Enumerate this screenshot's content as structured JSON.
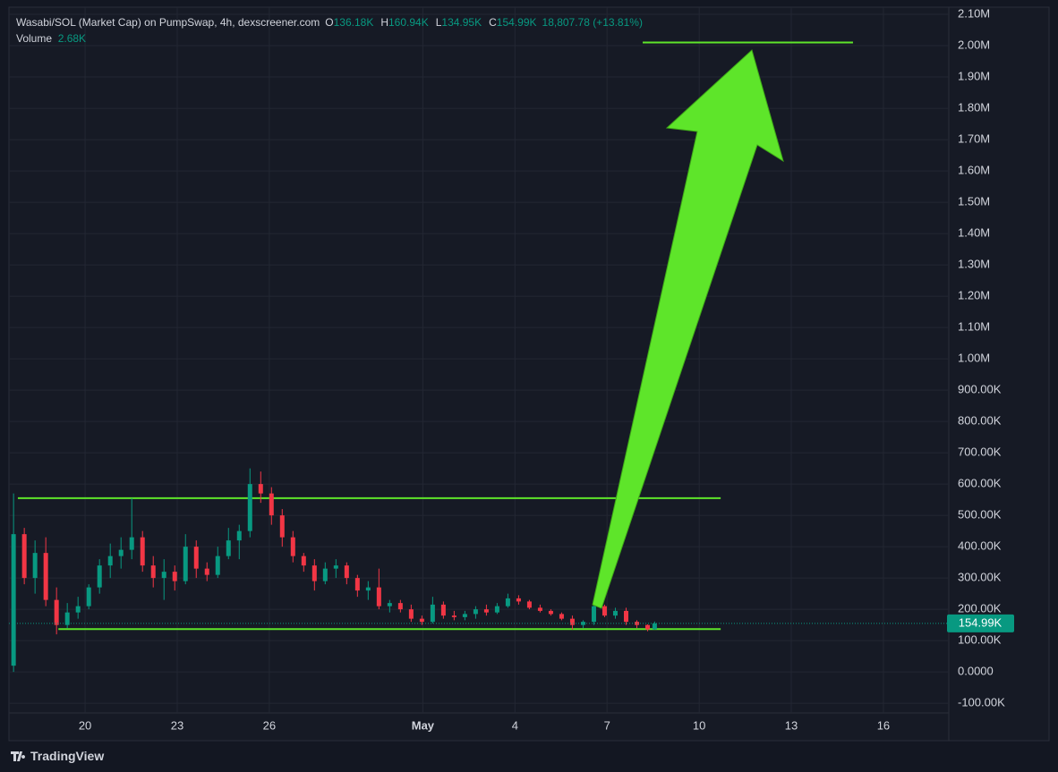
{
  "chart_data": {
    "type": "candlestick",
    "title": "Wasabi/SOL (Market Cap) on PumpSwap, 4h, dexscreener.com",
    "ohlc_legend": [
      {
        "key": "O",
        "value": "136.18K"
      },
      {
        "key": "H",
        "value": "160.94K"
      },
      {
        "key": "L",
        "value": "134.95K"
      },
      {
        "key": "C",
        "value": "154.99K"
      }
    ],
    "change": "18,807.78 (+13.81%)",
    "volume_label": "Volume",
    "volume": "2.68K",
    "up_color": "#089981",
    "down_color": "#f23645",
    "grid": true,
    "xlim": [
      17.52,
      48.13
    ],
    "xticks": [
      20,
      23,
      26,
      {
        "value": 31,
        "label": "May"
      },
      {
        "value": 34,
        "label": "4"
      },
      {
        "value": 37,
        "label": "7"
      },
      {
        "value": 40,
        "label": "10"
      },
      {
        "value": 43,
        "label": "13"
      },
      {
        "value": 46,
        "label": "16"
      }
    ],
    "ylim": [
      -131000,
      2123000
    ],
    "yticks": [
      {
        "value": 2100000,
        "label": "2.10M"
      },
      {
        "value": 2000000,
        "label": "2.00M"
      },
      {
        "value": 1900000,
        "label": "1.90M"
      },
      {
        "value": 1800000,
        "label": "1.80M"
      },
      {
        "value": 1700000,
        "label": "1.70M"
      },
      {
        "value": 1600000,
        "label": "1.60M"
      },
      {
        "value": 1500000,
        "label": "1.50M"
      },
      {
        "value": 1400000,
        "label": "1.40M"
      },
      {
        "value": 1300000,
        "label": "1.30M"
      },
      {
        "value": 1200000,
        "label": "1.20M"
      },
      {
        "value": 1100000,
        "label": "1.10M"
      },
      {
        "value": 1000000,
        "label": "1.00M"
      },
      {
        "value": 900000,
        "label": "900.00K"
      },
      {
        "value": 800000,
        "label": "800.00K"
      },
      {
        "value": 700000,
        "label": "700.00K"
      },
      {
        "value": 600000,
        "label": "600.00K"
      },
      {
        "value": 500000,
        "label": "500.00K"
      },
      {
        "value": 400000,
        "label": "400.00K"
      },
      {
        "value": 300000,
        "label": "300.00K"
      },
      {
        "value": 200000,
        "label": "200.00K"
      },
      {
        "value": 100000,
        "label": "100.00K"
      },
      {
        "value": 0,
        "label": "0.0000"
      },
      {
        "value": -100000,
        "label": "-100.00K"
      }
    ],
    "x": [
      17.67,
      18.02,
      18.37,
      18.72,
      19.07,
      19.42,
      19.77,
      20.12,
      20.47,
      20.82,
      21.17,
      21.52,
      21.87,
      22.22,
      22.57,
      22.92,
      23.27,
      23.62,
      23.97,
      24.32,
      24.67,
      25.02,
      25.37,
      25.72,
      26.07,
      26.42,
      26.77,
      27.12,
      27.47,
      27.82,
      28.17,
      28.52,
      28.87,
      29.22,
      29.57,
      29.92,
      30.27,
      30.62,
      30.97,
      31.32,
      31.67,
      32.02,
      32.37,
      32.72,
      33.07,
      33.42,
      33.77,
      34.12,
      34.47,
      34.82,
      35.17,
      35.52,
      35.87,
      36.22,
      36.57,
      36.92,
      37.27,
      37.62,
      37.97,
      38.32,
      38.55
    ],
    "open": [
      20000,
      440000,
      300000,
      380000,
      230000,
      150000,
      190000,
      210000,
      270000,
      340000,
      370000,
      390000,
      430000,
      340000,
      300000,
      320000,
      290000,
      400000,
      330000,
      310000,
      370000,
      420000,
      450000,
      600000,
      570000,
      500000,
      430000,
      370000,
      340000,
      290000,
      330000,
      340000,
      300000,
      260000,
      270000,
      210000,
      220000,
      200000,
      170000,
      160000,
      215000,
      180000,
      175000,
      185000,
      200000,
      190000,
      210000,
      235000,
      225000,
      205000,
      195000,
      185000,
      170000,
      150000,
      160000,
      210000,
      180000,
      195000,
      160000,
      150000,
      136180
    ],
    "high": [
      570000,
      460000,
      420000,
      430000,
      270000,
      220000,
      240000,
      280000,
      360000,
      410000,
      430000,
      555000,
      450000,
      370000,
      360000,
      340000,
      440000,
      420000,
      350000,
      400000,
      460000,
      470000,
      650000,
      640000,
      590000,
      520000,
      450000,
      380000,
      360000,
      350000,
      360000,
      350000,
      310000,
      290000,
      330000,
      230000,
      230000,
      215000,
      180000,
      240000,
      225000,
      195000,
      195000,
      210000,
      215000,
      220000,
      250000,
      245000,
      230000,
      215000,
      200000,
      190000,
      180000,
      165000,
      225000,
      215000,
      205000,
      205000,
      165000,
      152000,
      160940
    ],
    "low": [
      0,
      280000,
      250000,
      210000,
      120000,
      140000,
      170000,
      200000,
      250000,
      300000,
      330000,
      360000,
      320000,
      270000,
      230000,
      260000,
      280000,
      300000,
      290000,
      300000,
      360000,
      360000,
      430000,
      540000,
      470000,
      400000,
      350000,
      320000,
      260000,
      280000,
      300000,
      280000,
      240000,
      230000,
      200000,
      190000,
      190000,
      160000,
      150000,
      155000,
      170000,
      165000,
      165000,
      170000,
      180000,
      185000,
      205000,
      215000,
      200000,
      190000,
      180000,
      165000,
      135000,
      140000,
      150000,
      175000,
      170000,
      150000,
      140000,
      130000,
      134950
    ],
    "close": [
      440000,
      300000,
      380000,
      230000,
      150000,
      190000,
      210000,
      270000,
      340000,
      370000,
      390000,
      430000,
      340000,
      300000,
      320000,
      290000,
      400000,
      330000,
      310000,
      370000,
      420000,
      450000,
      600000,
      570000,
      500000,
      430000,
      370000,
      340000,
      290000,
      330000,
      340000,
      300000,
      260000,
      270000,
      210000,
      220000,
      200000,
      170000,
      160000,
      215000,
      180000,
      175000,
      185000,
      200000,
      190000,
      210000,
      235000,
      225000,
      205000,
      195000,
      185000,
      170000,
      150000,
      160000,
      210000,
      180000,
      195000,
      160000,
      150000,
      136180,
      154990
    ],
    "levels": [
      {
        "value": 555000,
        "x": [
          17.81,
          40.7
        ]
      },
      {
        "value": 137000,
        "x": [
          19.13,
          40.7
        ]
      },
      {
        "value": 2010000,
        "x": [
          38.16,
          45.01
        ]
      }
    ],
    "level_color": "#5ee52a"
  },
  "branding": "TradingView"
}
